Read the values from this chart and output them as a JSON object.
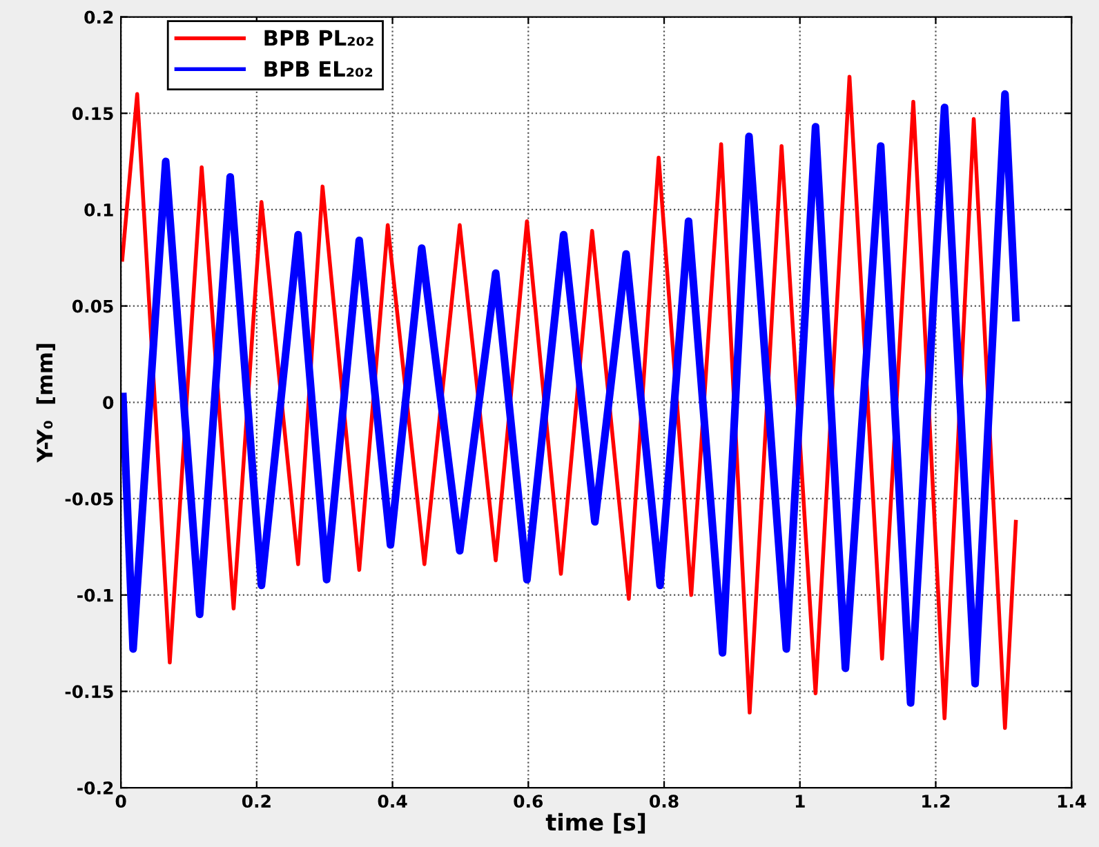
{
  "chart_data": {
    "type": "line",
    "xlabel": "time [s]",
    "ylabel": "Y-Y₀  [mm]",
    "xlim": [
      0,
      1.4
    ],
    "xticks": [
      0,
      0.2,
      0.4,
      0.6,
      0.8,
      1,
      1.2,
      1.4
    ],
    "ylim": [
      -0.2,
      0.2
    ],
    "yticks": [
      -0.2,
      -0.15,
      -0.1,
      -0.05,
      0,
      0.05,
      0.1,
      0.15,
      0.2
    ],
    "grid": true,
    "legend": "top left",
    "line_style": "solid",
    "series": [
      {
        "name": "BPB PL₂₀₂",
        "color": "#ff0000",
        "x": [
          0.002,
          0.024,
          0.072,
          0.119,
          0.166,
          0.207,
          0.261,
          0.297,
          0.351,
          0.393,
          0.447,
          0.499,
          0.552,
          0.598,
          0.648,
          0.694,
          0.748,
          0.792,
          0.84,
          0.884,
          0.926,
          0.973,
          1.023,
          1.073,
          1.121,
          1.167,
          1.213,
          1.256,
          1.302,
          1.318
        ],
        "values": [
          0.074,
          0.16,
          -0.135,
          0.122,
          -0.107,
          0.104,
          -0.084,
          0.112,
          -0.087,
          0.092,
          -0.084,
          0.092,
          -0.082,
          0.094,
          -0.089,
          0.089,
          -0.102,
          0.127,
          -0.1,
          0.134,
          -0.161,
          0.133,
          -0.151,
          0.169,
          -0.133,
          0.156,
          -0.164,
          0.147,
          -0.169,
          -0.062
        ]
      },
      {
        "name": "BPB EL₂₀₂",
        "color": "#0000ff",
        "x": [
          0.003,
          0.018,
          0.066,
          0.116,
          0.161,
          0.207,
          0.261,
          0.303,
          0.351,
          0.397,
          0.443,
          0.499,
          0.552,
          0.598,
          0.652,
          0.698,
          0.744,
          0.794,
          0.836,
          0.886,
          0.925,
          0.98,
          1.023,
          1.067,
          1.119,
          1.163,
          1.213,
          1.258,
          1.302,
          1.318
        ],
        "values": [
          0.003,
          -0.128,
          0.125,
          -0.11,
          0.117,
          -0.095,
          0.087,
          -0.092,
          0.084,
          -0.074,
          0.08,
          -0.077,
          0.067,
          -0.092,
          0.087,
          -0.062,
          0.077,
          -0.095,
          0.094,
          -0.13,
          0.138,
          -0.128,
          0.143,
          -0.138,
          0.133,
          -0.156,
          0.153,
          -0.146,
          0.16,
          0.044
        ]
      }
    ]
  }
}
